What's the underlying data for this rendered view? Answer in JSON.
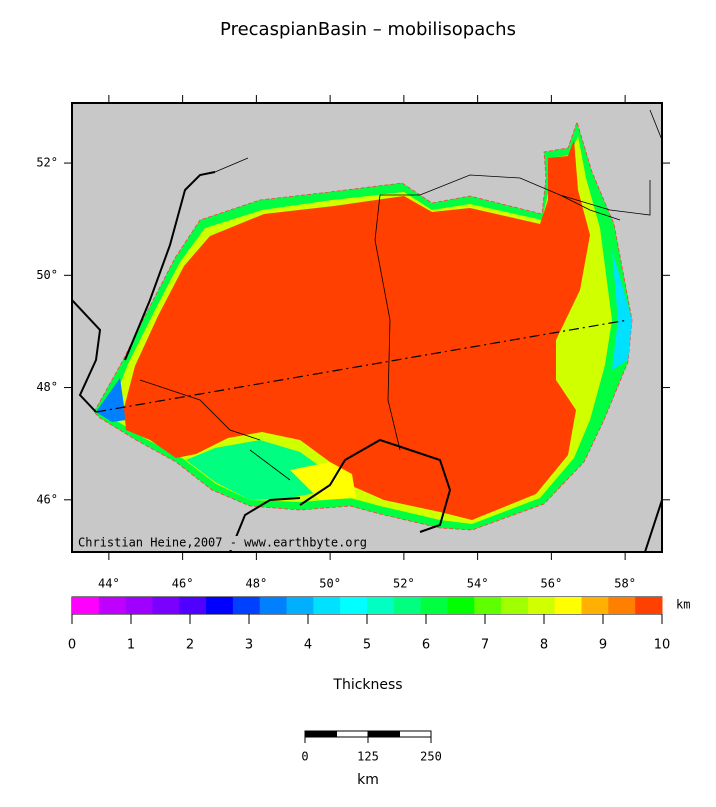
{
  "title": "PrecaspianBasin – mobilisopachs",
  "map": {
    "xlim": [
      43,
      59
    ],
    "ylim": [
      45.07,
      53.07
    ],
    "xticks": [
      {
        "value": 44,
        "label": "44°"
      },
      {
        "value": 46,
        "label": "46°"
      },
      {
        "value": 48,
        "label": "48°"
      },
      {
        "value": 50,
        "label": "50°"
      },
      {
        "value": 52,
        "label": "52°"
      },
      {
        "value": 54,
        "label": "54°"
      },
      {
        "value": 56,
        "label": "56°"
      },
      {
        "value": 58,
        "label": "58°"
      }
    ],
    "yticks": [
      {
        "value": 46,
        "label": "46°"
      },
      {
        "value": 48,
        "label": "48°"
      },
      {
        "value": 50,
        "label": "50°"
      },
      {
        "value": 52,
        "label": "52°"
      }
    ],
    "credit": "Christian Heine,2007 - www.earthbyte.org"
  },
  "colorbar": {
    "lim": [
      0,
      10
    ],
    "ticks": [
      0,
      1,
      2,
      3,
      4,
      5,
      6,
      7,
      8,
      9,
      10
    ],
    "unit": "km",
    "label": "Thickness",
    "colors": [
      "#ff00ff",
      "#c000ff",
      "#a000ff",
      "#7a00ff",
      "#5000ff",
      "#0000ff",
      "#0040ff",
      "#0080ff",
      "#00b0ff",
      "#00e0ff",
      "#00ffff",
      "#00ffc0",
      "#00ff80",
      "#00ff40",
      "#00ff00",
      "#60ff00",
      "#a0ff00",
      "#d0ff00",
      "#ffff00",
      "#ffb000",
      "#ff8000",
      "#ff4000"
    ]
  },
  "scale_bar": {
    "ticks": [
      0,
      125,
      250
    ],
    "unit": "km"
  }
}
